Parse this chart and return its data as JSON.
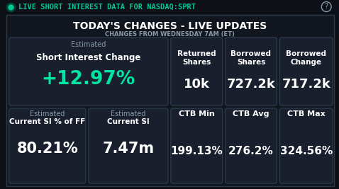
{
  "bg_outer": "#0d1117",
  "bg_card": "#1a1f2e",
  "bg_card_dark": "#12161f",
  "border_color": "#2a3a4a",
  "header_title": "TODAY'S CHANGES - LIVE UPDATES",
  "header_subtitle": "CHANGES FROM WEDNESDAY 7AM (ET)",
  "top_bar_text": "LIVE SHORT INTEREST DATA FOR NASDAQ:SPRT",
  "top_bar_accent": "#00c896",
  "title_color": "#ffffff",
  "label_color": "#8899aa",
  "value_color": "#ffffff",
  "green_color": "#00e5a0",
  "cell_border": "#2a3a4a",
  "estimated_label": "Estimated",
  "si_change_label": "Short Interest Change",
  "si_change_value": "+12.97%",
  "returned_shares_label": "Returned\nShares",
  "returned_shares_value": "10k",
  "borrowed_shares_label": "Borrowed\nShares",
  "borrowed_shares_value": "727.2k",
  "borrowed_change_label": "Borrowed\nChange",
  "borrowed_change_value": "717.2k",
  "si_pct_label1": "Estimated",
  "si_pct_label2": "Current SI % of FF",
  "si_pct_value": "80.21%",
  "current_si_label1": "Estimated",
  "current_si_label2": "Current SI",
  "current_si_value": "7.47m",
  "ctb_min_label": "CTB Min",
  "ctb_min_value": "199.13%",
  "ctb_avg_label": "CTB Avg",
  "ctb_avg_value": "276.2%",
  "ctb_max_label": "CTB Max",
  "ctb_max_value": "324.56%"
}
